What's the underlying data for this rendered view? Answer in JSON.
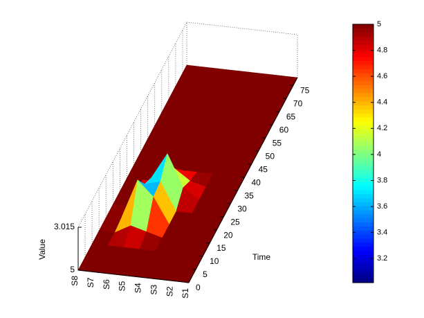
{
  "chart_data": {
    "type": "surface",
    "sensors": [
      "S1",
      "S2",
      "S3",
      "S4",
      "S5",
      "S6",
      "S7",
      "S8"
    ],
    "time": [
      0,
      5,
      10,
      15,
      20,
      25,
      30,
      35,
      40,
      45,
      50,
      55,
      60,
      65,
      70,
      75,
      78
    ],
    "z": [
      [
        5,
        5,
        5,
        5,
        5,
        5,
        5,
        5
      ],
      [
        5,
        5,
        5,
        5,
        5,
        5,
        5,
        5
      ],
      [
        5,
        5,
        5,
        5,
        5,
        5,
        5,
        5
      ],
      [
        5,
        5,
        5,
        5,
        4.8,
        4.6,
        5,
        5
      ],
      [
        5,
        5,
        5,
        5,
        3.8,
        3.1,
        4.9,
        5
      ],
      [
        5,
        5,
        5,
        5,
        3.7,
        3.9,
        5,
        5
      ],
      [
        5,
        5,
        5,
        4.5,
        3.02,
        4.2,
        5,
        5
      ],
      [
        5,
        5,
        5,
        4.8,
        4.3,
        5,
        5,
        5
      ],
      [
        5,
        5,
        5,
        5,
        5,
        5,
        5,
        5
      ],
      [
        5,
        5,
        5,
        5,
        5,
        5,
        5,
        5
      ],
      [
        5,
        5,
        5,
        5,
        5,
        5,
        5,
        5
      ],
      [
        5,
        5,
        5,
        5,
        5,
        5,
        5,
        5
      ],
      [
        5,
        5,
        5,
        5,
        5,
        5,
        5,
        5
      ],
      [
        5,
        5,
        5,
        5,
        5,
        5,
        5,
        5
      ],
      [
        5,
        5,
        5,
        5,
        5,
        5,
        5,
        5
      ],
      [
        5,
        5,
        5,
        5,
        5,
        5,
        5,
        5
      ],
      [
        5,
        5,
        5,
        5,
        5,
        5,
        5,
        5
      ]
    ],
    "ylabel": "Time",
    "zlabel": "Value",
    "ylim": [
      0,
      78
    ],
    "yticks": [
      0,
      5,
      10,
      15,
      20,
      25,
      30,
      35,
      40,
      45,
      50,
      55,
      60,
      65,
      70,
      75
    ],
    "zlim": [
      3.015,
      5
    ],
    "zticks": [
      3.015,
      5
    ],
    "zdir": "reverse",
    "colormap": "jet",
    "colorbar": {
      "clim": [
        3.015,
        5
      ],
      "ticks": [
        3.2,
        3.4,
        3.6,
        3.8,
        4,
        4.2,
        4.4,
        4.6,
        4.8,
        5
      ]
    }
  }
}
